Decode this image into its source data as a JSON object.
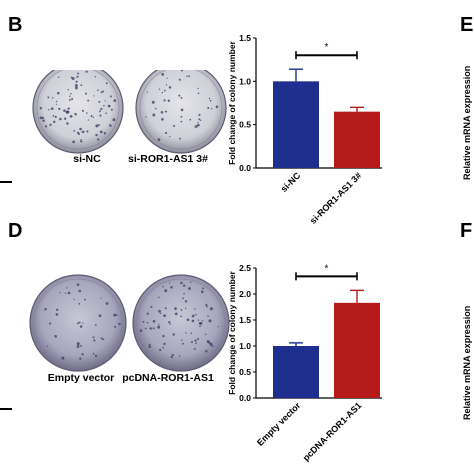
{
  "panels": {
    "B": {
      "letter": "B",
      "dish_labels": [
        "si-NC",
        "si-ROR1-AS1 3#"
      ]
    },
    "D": {
      "letter": "D",
      "dish_labels": [
        "Empty vector",
        "pcDNA-ROR1-AS1"
      ]
    },
    "E": {
      "letter": "E",
      "ylabel_partial": "Relative mRNA expression"
    },
    "F": {
      "letter": "F",
      "ylabel_partial": "Relative mRNA expression"
    }
  },
  "colors": {
    "blue": "#1f2f8f",
    "red": "#b51a1a",
    "dish_tint": "#8f8eb0"
  },
  "chart_data": [
    {
      "type": "bar",
      "categories": [
        "si-NC",
        "si-ROR1-AS1 3#"
      ],
      "values": [
        1.0,
        0.65
      ],
      "errors": [
        0.14,
        0.05
      ],
      "ylabel": "Fold change of colony number",
      "ylim": [
        0.0,
        1.5
      ],
      "yticks": [
        "0.0",
        "0.5",
        "1.0",
        "1.5"
      ],
      "significance": "*",
      "colors": [
        "#1f2f8f",
        "#b51a1a"
      ]
    },
    {
      "type": "bar",
      "categories": [
        "Empty vector",
        "pcDNA-ROR1-AS1"
      ],
      "values": [
        1.0,
        1.83
      ],
      "errors": [
        0.06,
        0.24
      ],
      "ylabel": "Fold change of colony number",
      "ylim": [
        0.0,
        2.5
      ],
      "yticks": [
        "0.0",
        "0.5",
        "1.0",
        "1.5",
        "2.0",
        "2.5"
      ],
      "significance": "*",
      "colors": [
        "#1f2f8f",
        "#b51a1a"
      ]
    }
  ]
}
